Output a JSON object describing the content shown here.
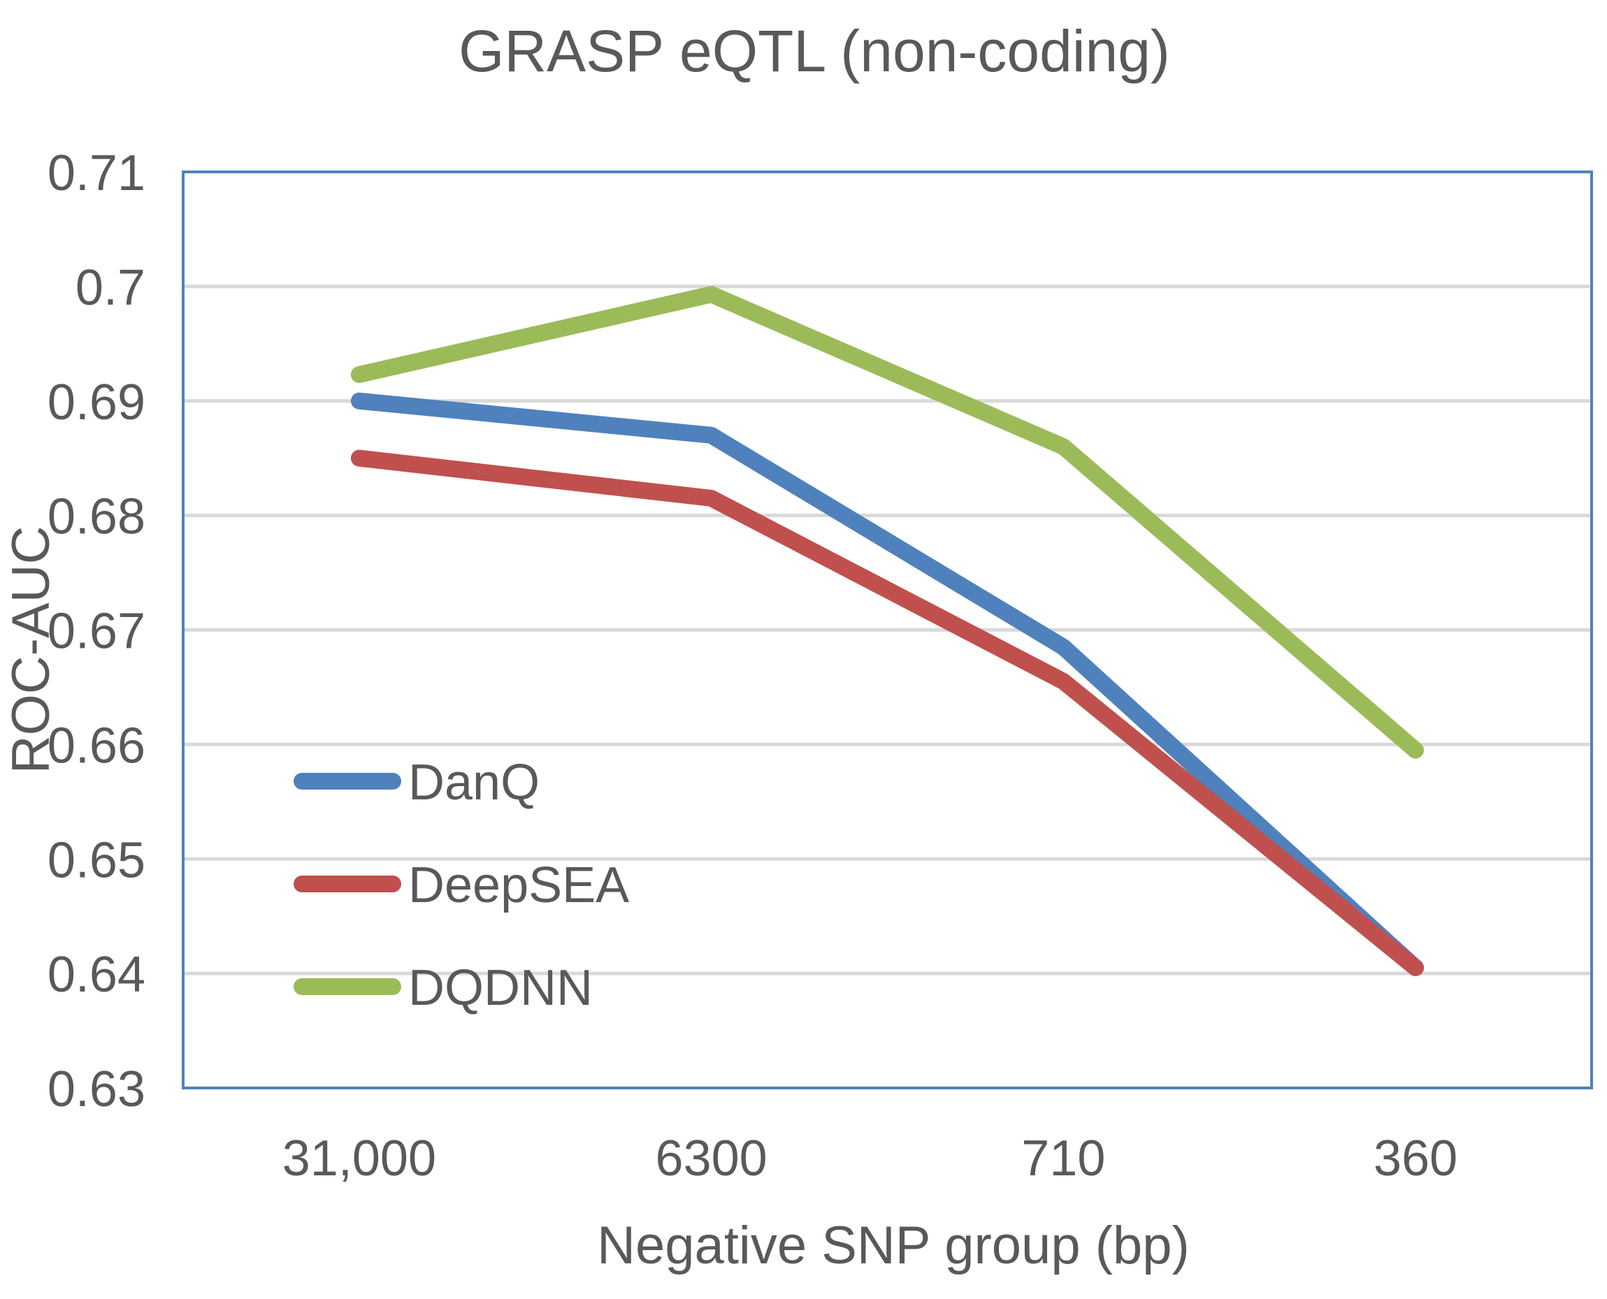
{
  "chart_data": {
    "type": "line",
    "title": "GRASP eQTL (non-coding)",
    "xlabel": "Negative SNP group (bp)",
    "ylabel": "ROC-AUC",
    "categories": [
      "31,000",
      "6300",
      "710",
      "360"
    ],
    "ylim": [
      0.63,
      0.71
    ],
    "yticks": [
      0.63,
      0.64,
      0.65,
      0.66,
      0.67,
      0.68,
      0.69,
      0.7,
      0.71
    ],
    "ytick_labels": [
      "0.63",
      "0.64",
      "0.65",
      "0.66",
      "0.67",
      "0.68",
      "0.69",
      "0.7",
      "0.71"
    ],
    "grid": true,
    "legend_position": "lower-left",
    "series": [
      {
        "name": "DanQ",
        "color": "#4F81BD",
        "values": [
          0.69,
          0.687,
          0.6685,
          0.6405
        ]
      },
      {
        "name": "DeepSEA",
        "color": "#C0504D",
        "values": [
          0.685,
          0.6815,
          0.6655,
          0.6405
        ]
      },
      {
        "name": "DQDNN",
        "color": "#9BBB59",
        "values": [
          0.6923,
          0.6993,
          0.686,
          0.6595
        ]
      }
    ],
    "colors": {
      "frame": "#4F81BD",
      "grid": "#D9D9D9",
      "text": "#595959"
    }
  }
}
